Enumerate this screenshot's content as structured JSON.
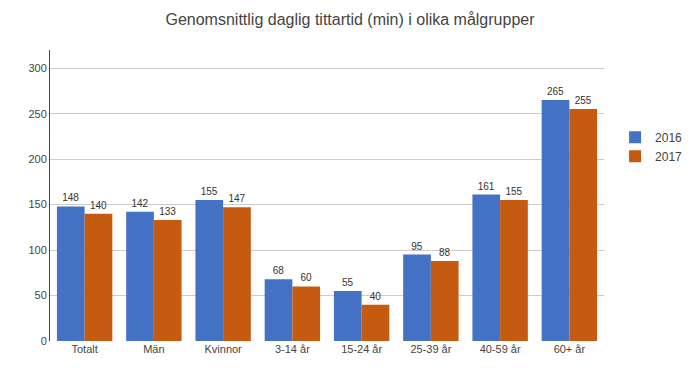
{
  "chart_data": {
    "type": "bar",
    "title": "Genomsnittlig daglig tittartid (min) i olika målgrupper",
    "categories": [
      "Totalt",
      "Män",
      "Kvinnor",
      "3-14 år",
      "15-24 år",
      "25-39 år",
      "40-59 år",
      "60+ år"
    ],
    "series": [
      {
        "name": "2016",
        "color": "#4472C4",
        "values": [
          148,
          142,
          155,
          68,
          55,
          95,
          161,
          265
        ]
      },
      {
        "name": "2017",
        "color": "#C55A11",
        "values": [
          140,
          133,
          147,
          60,
          40,
          88,
          155,
          255
        ]
      }
    ],
    "ylim": [
      0,
      320
    ],
    "yticks": [
      0,
      50,
      100,
      150,
      200,
      250,
      300
    ],
    "grid": true,
    "legend": "right",
    "data_labels": true
  }
}
